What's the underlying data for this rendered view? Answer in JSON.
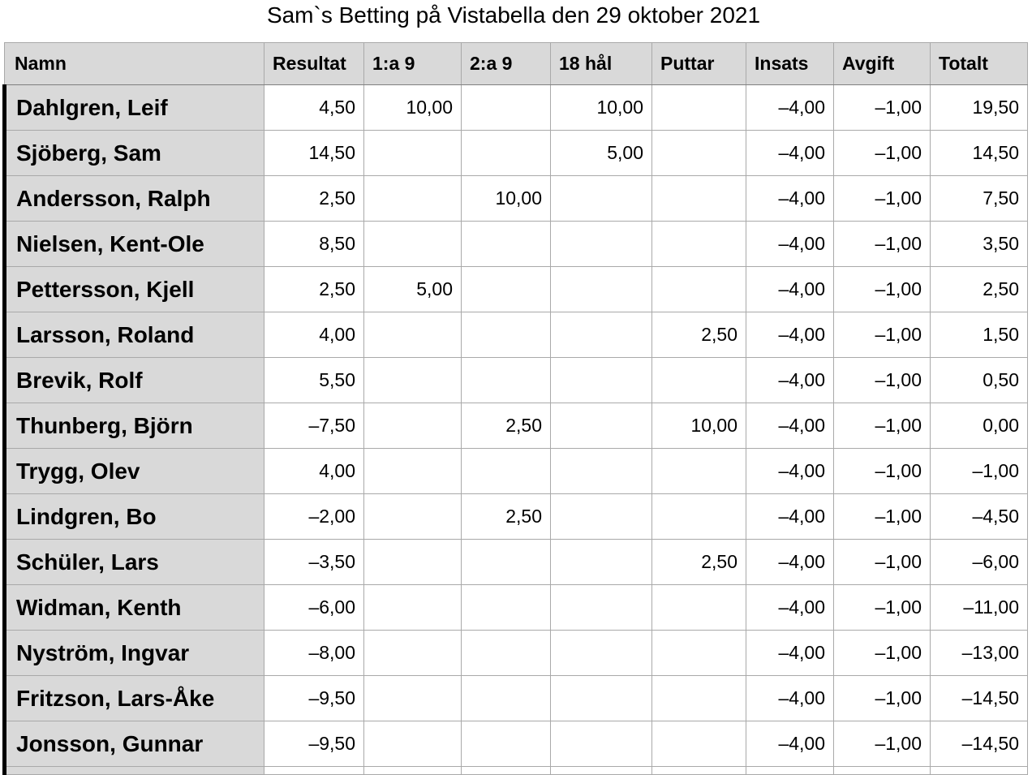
{
  "title": "Sam`s Betting på Vistabella den 29 oktober 2021",
  "columns": [
    "Namn",
    "Resultat",
    "1:a 9",
    "2:a 9",
    "18 hål",
    "Puttar",
    "Insats",
    "Avgift",
    "Totalt"
  ],
  "rows": [
    {
      "name": "Dahlgren, Leif",
      "cells": [
        "4,50",
        "10,00",
        "",
        "10,00",
        "",
        "–4,00",
        "–1,00",
        "19,50"
      ]
    },
    {
      "name": "Sjöberg, Sam",
      "cells": [
        "14,50",
        "",
        "",
        "5,00",
        "",
        "–4,00",
        "–1,00",
        "14,50"
      ]
    },
    {
      "name": "Andersson, Ralph",
      "cells": [
        "2,50",
        "",
        "10,00",
        "",
        "",
        "–4,00",
        "–1,00",
        "7,50"
      ]
    },
    {
      "name": "Nielsen, Kent-Ole",
      "cells": [
        "8,50",
        "",
        "",
        "",
        "",
        "–4,00",
        "–1,00",
        "3,50"
      ]
    },
    {
      "name": "Pettersson, Kjell",
      "cells": [
        "2,50",
        "5,00",
        "",
        "",
        "",
        "–4,00",
        "–1,00",
        "2,50"
      ]
    },
    {
      "name": "Larsson, Roland",
      "cells": [
        "4,00",
        "",
        "",
        "",
        "2,50",
        "–4,00",
        "–1,00",
        "1,50"
      ]
    },
    {
      "name": "Brevik, Rolf",
      "cells": [
        "5,50",
        "",
        "",
        "",
        "",
        "–4,00",
        "–1,00",
        "0,50"
      ]
    },
    {
      "name": "Thunberg, Björn",
      "cells": [
        "–7,50",
        "",
        "2,50",
        "",
        "10,00",
        "–4,00",
        "–1,00",
        "0,00"
      ]
    },
    {
      "name": "Trygg, Olev",
      "cells": [
        "4,00",
        "",
        "",
        "",
        "",
        "–4,00",
        "–1,00",
        "–1,00"
      ]
    },
    {
      "name": "Lindgren, Bo",
      "cells": [
        "–2,00",
        "",
        "2,50",
        "",
        "",
        "–4,00",
        "–1,00",
        "–4,50"
      ]
    },
    {
      "name": "Schüler, Lars",
      "cells": [
        "–3,50",
        "",
        "",
        "",
        "2,50",
        "–4,00",
        "–1,00",
        "–6,00"
      ]
    },
    {
      "name": "Widman, Kenth",
      "cells": [
        "–6,00",
        "",
        "",
        "",
        "",
        "–4,00",
        "–1,00",
        "–11,00"
      ]
    },
    {
      "name": "Nyström, Ingvar",
      "cells": [
        "–8,00",
        "",
        "",
        "",
        "",
        "–4,00",
        "–1,00",
        "–13,00"
      ]
    },
    {
      "name": "Fritzson, Lars-Åke",
      "cells": [
        "–9,50",
        "",
        "",
        "",
        "",
        "–4,00",
        "–1,00",
        "–14,50"
      ]
    },
    {
      "name": "Jonsson, Gunnar",
      "cells": [
        "–9,50",
        "",
        "",
        "",
        "",
        "–4,00",
        "–1,00",
        "–14,50"
      ]
    }
  ],
  "colors": {
    "header_bg": "#d9d9d9",
    "name_bg": "#d9d9d9",
    "grid": "#a9a9a9",
    "left_rule": "#000000"
  }
}
